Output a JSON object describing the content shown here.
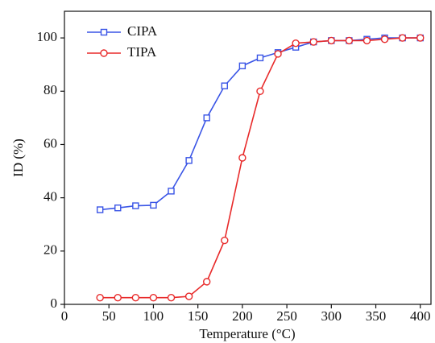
{
  "chart_data": {
    "type": "line",
    "x_label": "Temperature (°C)",
    "y_label": "ID (%)",
    "x": [
      40,
      60,
      80,
      100,
      120,
      140,
      160,
      180,
      200,
      220,
      240,
      260,
      280,
      300,
      320,
      340,
      360,
      380,
      400
    ],
    "series": [
      {
        "name": "CIPA",
        "color": "#3a55e6",
        "marker": "square",
        "values": [
          35.5,
          36.2,
          37,
          37.2,
          42.5,
          54,
          70,
          82,
          89.5,
          92.5,
          94.5,
          96.5,
          98.5,
          99,
          99,
          99.5,
          100,
          100,
          100
        ]
      },
      {
        "name": "TIPA",
        "color": "#e82a2a",
        "marker": "circle",
        "values": [
          2.5,
          2.5,
          2.5,
          2.5,
          2.5,
          3,
          8.5,
          24,
          55,
          80,
          94,
          98,
          98.5,
          99,
          99,
          99,
          99.5,
          100,
          100
        ]
      }
    ],
    "xlim": [
      0,
      412
    ],
    "ylim": [
      0,
      110
    ],
    "xticks": [
      0,
      50,
      100,
      150,
      200,
      250,
      300,
      350,
      400
    ],
    "yticks": [
      0,
      20,
      40,
      60,
      80,
      100
    ],
    "grid": false,
    "legend": "upper left"
  }
}
